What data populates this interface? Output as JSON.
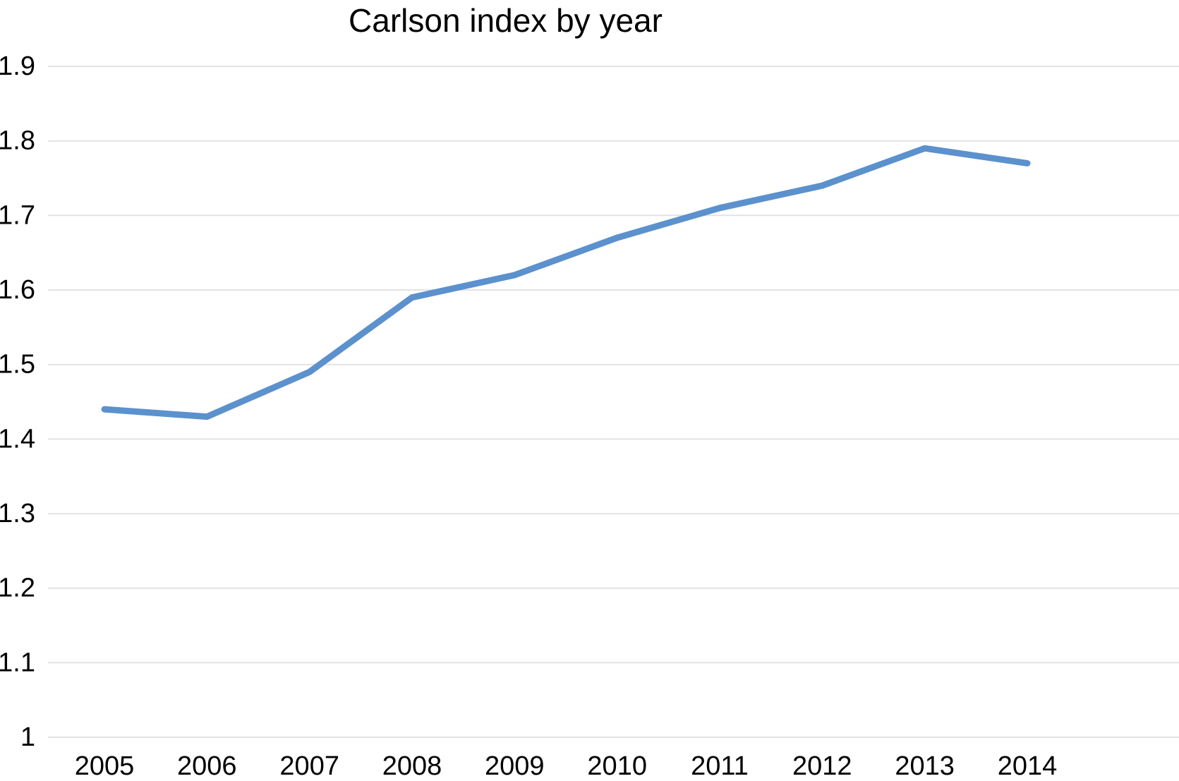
{
  "page": {
    "background_color": "#ffffff"
  },
  "chart_data": {
    "type": "line",
    "title": "Carlson index by year",
    "categories": [
      "2005",
      "2006",
      "2007",
      "2008",
      "2009",
      "2010",
      "2011",
      "2012",
      "2013",
      "2014"
    ],
    "series": [
      {
        "name": "Carlson index",
        "values": [
          1.44,
          1.43,
          1.49,
          1.59,
          1.62,
          1.67,
          1.71,
          1.74,
          1.79,
          1.77
        ]
      }
    ],
    "xlabel": "",
    "ylabel": "",
    "ylim": [
      1.0,
      1.9
    ],
    "ytick_step": 0.1,
    "ytick_labels": [
      "1.9",
      "1.8",
      "1.7",
      "1.6",
      "1.5",
      "1.4",
      "1.3",
      "1.2",
      "1.1",
      "1"
    ],
    "grid": "horizontal",
    "legend": "none",
    "line_color": "#5b91cd",
    "gridline_color": "#e3e3e3",
    "text_color": "#000000"
  }
}
